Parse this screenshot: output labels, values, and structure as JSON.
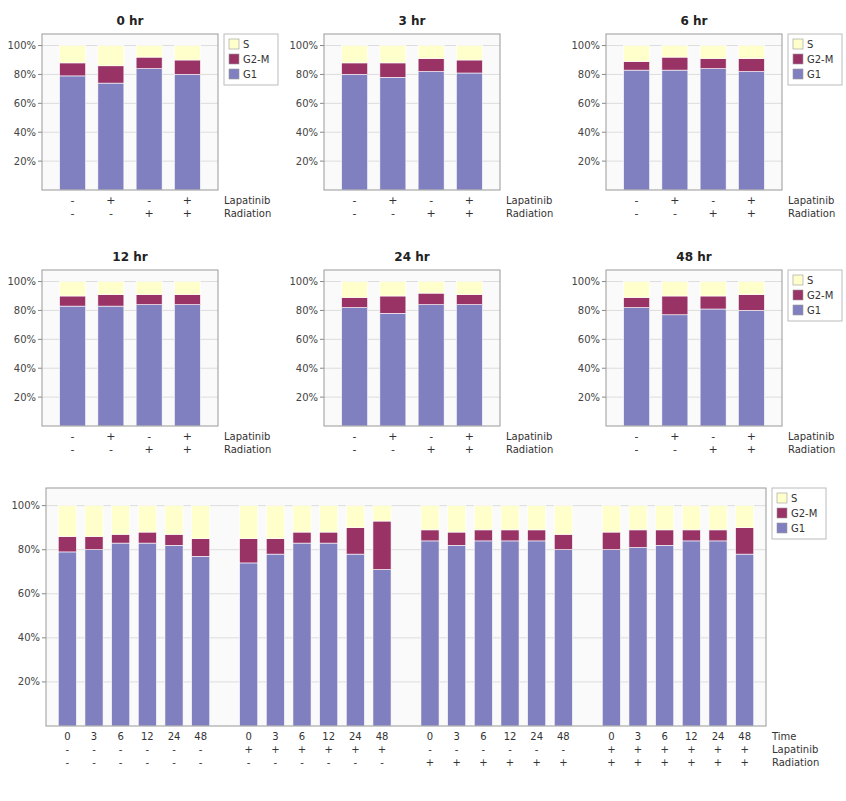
{
  "chart_data": [
    {
      "type": "bar",
      "stacked": true,
      "grid": true,
      "legend": "right",
      "title": "0 hr",
      "categories": [
        [
          "-",
          "-"
        ],
        [
          "+",
          "-"
        ],
        [
          "-",
          "+"
        ],
        [
          "+",
          "+"
        ]
      ],
      "category_levels": [
        "Lapatinib",
        "Radiation"
      ],
      "series": [
        {
          "name": "G1",
          "color": "#8080c0",
          "values": [
            79,
            74,
            84,
            80
          ]
        },
        {
          "name": "G2-M",
          "color": "#993366",
          "values": [
            9,
            12,
            8,
            10
          ]
        },
        {
          "name": "S",
          "color": "#ffffcc",
          "values": [
            12,
            14,
            8,
            10
          ]
        }
      ],
      "ylim": [
        0,
        108
      ],
      "yticks": [
        {
          "value": 20,
          "label": "20%"
        },
        {
          "value": 40,
          "label": "40%"
        },
        {
          "value": 60,
          "label": "60%"
        },
        {
          "value": 80,
          "label": "80%"
        },
        {
          "value": 100,
          "label": "100%"
        }
      ]
    },
    {
      "type": "bar",
      "stacked": true,
      "grid": true,
      "title": "3 hr",
      "categories": [
        [
          "-",
          "-"
        ],
        [
          "+",
          "-"
        ],
        [
          "-",
          "+"
        ],
        [
          "+",
          "+"
        ]
      ],
      "category_levels": [
        "Lapatinib",
        "Radiation"
      ],
      "series": [
        {
          "name": "G1",
          "color": "#8080c0",
          "values": [
            80,
            78,
            82,
            81
          ]
        },
        {
          "name": "G2-M",
          "color": "#993366",
          "values": [
            8,
            10,
            9,
            9
          ]
        },
        {
          "name": "S",
          "color": "#ffffcc",
          "values": [
            12,
            12,
            9,
            10
          ]
        }
      ],
      "ylim": [
        0,
        108
      ],
      "yticks": [
        {
          "value": 20,
          "label": "20%"
        },
        {
          "value": 40,
          "label": "40%"
        },
        {
          "value": 60,
          "label": "60%"
        },
        {
          "value": 80,
          "label": "80%"
        },
        {
          "value": 100,
          "label": "100%"
        }
      ]
    },
    {
      "type": "bar",
      "stacked": true,
      "grid": true,
      "legend": "right",
      "title": "6 hr",
      "categories": [
        [
          "-",
          "-"
        ],
        [
          "+",
          "-"
        ],
        [
          "-",
          "+"
        ],
        [
          "+",
          "+"
        ]
      ],
      "category_levels": [
        "Lapatinib",
        "Radiation"
      ],
      "series": [
        {
          "name": "G1",
          "color": "#8080c0",
          "values": [
            83,
            83,
            84,
            82
          ]
        },
        {
          "name": "G2-M",
          "color": "#993366",
          "values": [
            6,
            9,
            7,
            9
          ]
        },
        {
          "name": "S",
          "color": "#ffffcc",
          "values": [
            11,
            8,
            9,
            9
          ]
        }
      ],
      "ylim": [
        0,
        108
      ],
      "yticks": [
        {
          "value": 20,
          "label": "20%"
        },
        {
          "value": 40,
          "label": "40%"
        },
        {
          "value": 60,
          "label": "60%"
        },
        {
          "value": 80,
          "label": "80%"
        },
        {
          "value": 100,
          "label": "100%"
        }
      ]
    },
    {
      "type": "bar",
      "stacked": true,
      "grid": true,
      "title": "12 hr",
      "categories": [
        [
          "-",
          "-"
        ],
        [
          "+",
          "-"
        ],
        [
          "-",
          "+"
        ],
        [
          "+",
          "+"
        ]
      ],
      "category_levels": [
        "Lapatinib",
        "Radiation"
      ],
      "series": [
        {
          "name": "G1",
          "color": "#8080c0",
          "values": [
            83,
            83,
            84,
            84
          ]
        },
        {
          "name": "G2-M",
          "color": "#993366",
          "values": [
            7,
            8,
            7,
            7
          ]
        },
        {
          "name": "S",
          "color": "#ffffcc",
          "values": [
            10,
            9,
            9,
            9
          ]
        }
      ],
      "ylim": [
        0,
        108
      ],
      "yticks": [
        {
          "value": 20,
          "label": "20%"
        },
        {
          "value": 40,
          "label": "40%"
        },
        {
          "value": 60,
          "label": "60%"
        },
        {
          "value": 80,
          "label": "80%"
        },
        {
          "value": 100,
          "label": "100%"
        }
      ]
    },
    {
      "type": "bar",
      "stacked": true,
      "grid": true,
      "title": "24 hr",
      "categories": [
        [
          "-",
          "-"
        ],
        [
          "+",
          "-"
        ],
        [
          "-",
          "+"
        ],
        [
          "+",
          "+"
        ]
      ],
      "category_levels": [
        "Lapatinib",
        "Radiation"
      ],
      "series": [
        {
          "name": "G1",
          "color": "#8080c0",
          "values": [
            82,
            78,
            84,
            84
          ]
        },
        {
          "name": "G2-M",
          "color": "#993366",
          "values": [
            7,
            12,
            8,
            7
          ]
        },
        {
          "name": "S",
          "color": "#ffffcc",
          "values": [
            11,
            10,
            8,
            9
          ]
        }
      ],
      "ylim": [
        0,
        108
      ],
      "yticks": [
        {
          "value": 20,
          "label": "20%"
        },
        {
          "value": 40,
          "label": "40%"
        },
        {
          "value": 60,
          "label": "60%"
        },
        {
          "value": 80,
          "label": "80%"
        },
        {
          "value": 100,
          "label": "100%"
        }
      ]
    },
    {
      "type": "bar",
      "stacked": true,
      "grid": true,
      "legend": "right",
      "title": "48 hr",
      "categories": [
        [
          "-",
          "-"
        ],
        [
          "+",
          "-"
        ],
        [
          "-",
          "+"
        ],
        [
          "+",
          "+"
        ]
      ],
      "category_levels": [
        "Lapatinib",
        "Radiation"
      ],
      "series": [
        {
          "name": "G1",
          "color": "#8080c0",
          "values": [
            82,
            77,
            81,
            80
          ]
        },
        {
          "name": "G2-M",
          "color": "#993366",
          "values": [
            7,
            13,
            9,
            11
          ]
        },
        {
          "name": "S",
          "color": "#ffffcc",
          "values": [
            11,
            10,
            10,
            9
          ]
        }
      ],
      "ylim": [
        0,
        108
      ],
      "yticks": [
        {
          "value": 20,
          "label": "20%"
        },
        {
          "value": 40,
          "label": "40%"
        },
        {
          "value": 60,
          "label": "60%"
        },
        {
          "value": 80,
          "label": "80%"
        },
        {
          "value": 100,
          "label": "100%"
        }
      ]
    },
    {
      "type": "bar",
      "stacked": true,
      "grid": true,
      "legend": "right",
      "categories": [
        [
          "0",
          "-",
          "-"
        ],
        [
          "3",
          "-",
          "-"
        ],
        [
          "6",
          "-",
          "-"
        ],
        [
          "12",
          "-",
          "-"
        ],
        [
          "24",
          "-",
          "-"
        ],
        [
          "48",
          "-",
          "-"
        ],
        [
          "0",
          "+",
          "-"
        ],
        [
          "3",
          "+",
          "-"
        ],
        [
          "6",
          "+",
          "-"
        ],
        [
          "12",
          "+",
          "-"
        ],
        [
          "24",
          "+",
          "-"
        ],
        [
          "48",
          "+",
          "-"
        ],
        [
          "0",
          "-",
          "+"
        ],
        [
          "3",
          "-",
          "+"
        ],
        [
          "6",
          "-",
          "+"
        ],
        [
          "12",
          "-",
          "+"
        ],
        [
          "24",
          "-",
          "+"
        ],
        [
          "48",
          "-",
          "+"
        ],
        [
          "0",
          "+",
          "+"
        ],
        [
          "3",
          "+",
          "+"
        ],
        [
          "6",
          "+",
          "+"
        ],
        [
          "12",
          "+",
          "+"
        ],
        [
          "24",
          "+",
          "+"
        ],
        [
          "48",
          "+",
          "+"
        ]
      ],
      "category_levels": [
        "Time",
        "Lapatinib",
        "Radiation"
      ],
      "series": [
        {
          "name": "G1",
          "color": "#8080c0",
          "values": [
            79,
            80,
            83,
            83,
            82,
            77,
            74,
            78,
            83,
            83,
            78,
            71,
            84,
            82,
            84,
            84,
            84,
            80,
            80,
            81,
            82,
            84,
            84,
            78
          ]
        },
        {
          "name": "G2-M",
          "color": "#993366",
          "values": [
            7,
            6,
            4,
            5,
            5,
            8,
            11,
            7,
            5,
            5,
            12,
            22,
            5,
            6,
            5,
            5,
            5,
            7,
            8,
            8,
            7,
            5,
            5,
            12
          ]
        },
        {
          "name": "S",
          "color": "#ffffcc",
          "values": [
            14,
            14,
            13,
            12,
            13,
            15,
            15,
            15,
            12,
            12,
            10,
            7,
            11,
            12,
            11,
            11,
            11,
            13,
            12,
            11,
            11,
            11,
            11,
            10
          ]
        }
      ],
      "ylim": [
        0,
        108
      ],
      "yticks": [
        {
          "value": 20,
          "label": "20%"
        },
        {
          "value": 40,
          "label": "40%"
        },
        {
          "value": 60,
          "label": "60%"
        },
        {
          "value": 80,
          "label": "80%"
        },
        {
          "value": 100,
          "label": "100%"
        }
      ]
    }
  ]
}
